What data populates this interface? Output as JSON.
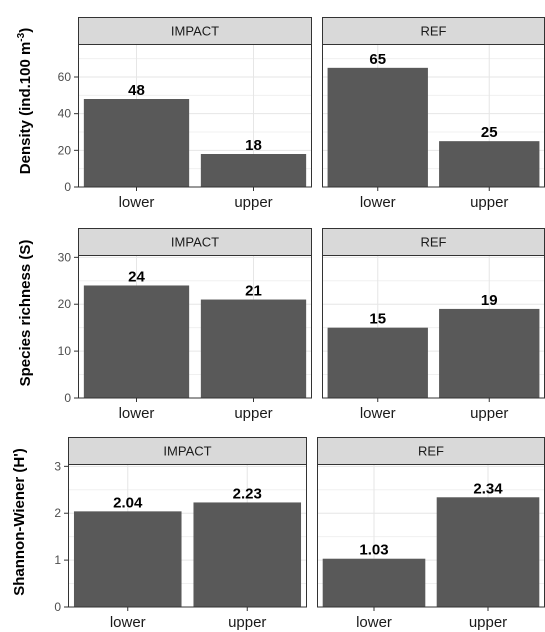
{
  "chart_data": [
    {
      "type": "bar",
      "ylabel": "Density (ind.100 m",
      "ylabel_sup": "-3",
      "ylabel_close": ")",
      "ylim": [
        0,
        78
      ],
      "yticks": [
        "0",
        "20",
        "40",
        "60"
      ],
      "ytick_values": [
        0,
        20,
        40,
        60
      ],
      "categories": [
        "lower",
        "upper"
      ],
      "panels": [
        {
          "name": "IMPACT",
          "values": [
            48,
            18
          ],
          "labels": [
            "48",
            "18"
          ]
        },
        {
          "name": "REF",
          "values": [
            65,
            25
          ],
          "labels": [
            "65",
            "25"
          ]
        }
      ],
      "bar_color": "#595959",
      "grid": true
    },
    {
      "type": "bar",
      "ylabel": "Species richness (S)",
      "ylim": [
        0,
        30.5
      ],
      "yticks": [
        "0",
        "10",
        "20",
        "30"
      ],
      "ytick_values": [
        0,
        10,
        20,
        30
      ],
      "categories": [
        "lower",
        "upper"
      ],
      "panels": [
        {
          "name": "IMPACT",
          "values": [
            24,
            21
          ],
          "labels": [
            "24",
            "21"
          ]
        },
        {
          "name": "REF",
          "values": [
            15,
            19
          ],
          "labels": [
            "15",
            "19"
          ]
        }
      ],
      "bar_color": "#595959",
      "grid": true
    },
    {
      "type": "bar",
      "ylabel": "Shannon-Wiener (H')",
      "ylim": [
        0,
        3.05
      ],
      "yticks": [
        "0",
        "1",
        "2",
        "3"
      ],
      "ytick_values": [
        0,
        1,
        2,
        3
      ],
      "categories": [
        "lower",
        "upper"
      ],
      "panels": [
        {
          "name": "IMPACT",
          "values": [
            2.04,
            2.23
          ],
          "labels": [
            "2.04",
            "2.23"
          ]
        },
        {
          "name": "REF",
          "values": [
            1.03,
            2.34
          ],
          "labels": [
            "1.03",
            "2.34"
          ]
        }
      ],
      "bar_color": "#595959",
      "grid": true
    }
  ]
}
